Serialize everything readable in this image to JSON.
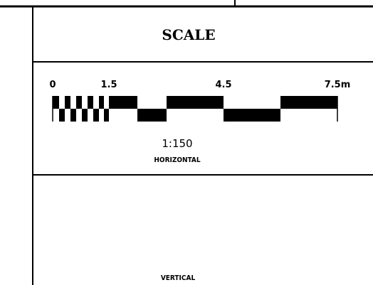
{
  "panel": {
    "title": "SCALE",
    "horizontal": {
      "ticks": [
        {
          "label": "0",
          "value": 0
        },
        {
          "label": "1.5",
          "value": 1.5
        },
        {
          "label": "4.5",
          "value": 4.5
        },
        {
          "label": "7.5m",
          "value": 7.5
        }
      ],
      "ratio": "1:150",
      "caption": "HORIZONTAL"
    },
    "vertical": {
      "caption": "VERTICAL"
    }
  },
  "colors": {
    "ink": "#000000",
    "paper": "#ffffff"
  }
}
